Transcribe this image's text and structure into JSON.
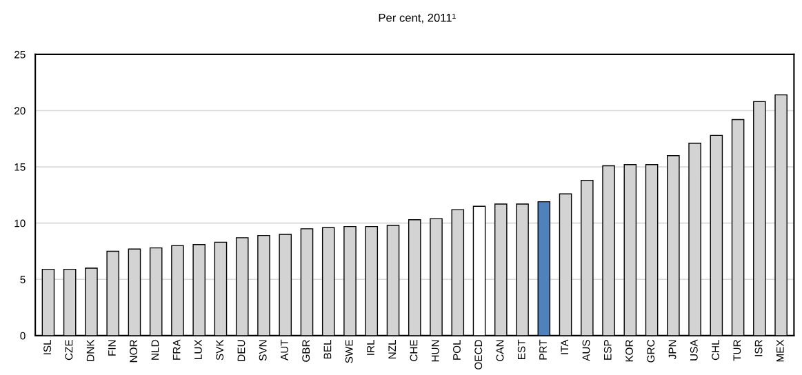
{
  "chart_data": {
    "type": "bar",
    "title": "Per cent, 2011¹",
    "categories": [
      "ISL",
      "CZE",
      "DNK",
      "FIN",
      "NOR",
      "NLD",
      "FRA",
      "LUX",
      "SVK",
      "DEU",
      "SVN",
      "AUT",
      "GBR",
      "BEL",
      "SWE",
      "IRL",
      "NZL",
      "CHE",
      "HUN",
      "POL",
      "OECD",
      "CAN",
      "EST",
      "PRT",
      "ITA",
      "AUS",
      "ESP",
      "KOR",
      "GRC",
      "JPN",
      "USA",
      "CHL",
      "TUR",
      "ISR",
      "MEX"
    ],
    "values": [
      5.9,
      5.9,
      6.0,
      7.5,
      7.7,
      7.8,
      8.0,
      8.1,
      8.3,
      8.7,
      8.9,
      9.0,
      9.5,
      9.6,
      9.7,
      9.7,
      9.8,
      10.3,
      10.4,
      11.2,
      11.5,
      11.7,
      11.7,
      11.9,
      12.6,
      13.8,
      15.1,
      15.2,
      15.2,
      16.0,
      17.1,
      17.8,
      19.2,
      20.8,
      21.4
    ],
    "colors": [
      "#d3d3d3",
      "#d3d3d3",
      "#d3d3d3",
      "#d3d3d3",
      "#d3d3d3",
      "#d3d3d3",
      "#d3d3d3",
      "#d3d3d3",
      "#d3d3d3",
      "#d3d3d3",
      "#d3d3d3",
      "#d3d3d3",
      "#d3d3d3",
      "#d3d3d3",
      "#d3d3d3",
      "#d3d3d3",
      "#d3d3d3",
      "#d3d3d3",
      "#d3d3d3",
      "#d3d3d3",
      "#ffffff",
      "#d3d3d3",
      "#d3d3d3",
      "#4f81bd",
      "#d3d3d3",
      "#d3d3d3",
      "#d3d3d3",
      "#d3d3d3",
      "#d3d3d3",
      "#d3d3d3",
      "#d3d3d3",
      "#d3d3d3",
      "#d3d3d3",
      "#d3d3d3",
      "#d3d3d3"
    ],
    "ylim": [
      0,
      25
    ],
    "yticks": [
      0,
      5,
      10,
      15,
      20,
      25
    ],
    "grid": "y"
  }
}
